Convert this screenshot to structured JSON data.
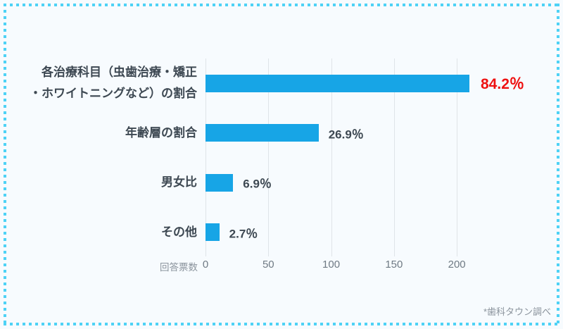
{
  "chart_data": {
    "type": "bar",
    "orientation": "horizontal",
    "title": "",
    "xlabel": "回答票数",
    "x_ticks": [
      0,
      50,
      100,
      150,
      200
    ],
    "xlim": [
      0,
      224
    ],
    "grid": true,
    "legend": false,
    "categories": [
      "各治療科目（虫歯治療・矯正\n・ホワイトニングなど）の割合",
      "年齢層の割合",
      "男女比",
      "その他"
    ],
    "values": [
      210,
      90,
      22,
      11
    ],
    "value_labels": [
      "84.2％",
      "26.9％",
      "6.9％",
      "2.7％"
    ],
    "highlight_index": 0
  },
  "colors": {
    "background": "#F7FBFE",
    "bar": "#17A5E6",
    "gridline": "#DFE4E8",
    "border_dots": "#4ED2F5",
    "category_label": "#3D4852",
    "value_label": "#3D4852",
    "highlight_value_label": "#EE1111",
    "tick_label": "#6F7A84",
    "axis_label": "#8A939C"
  },
  "footer": {
    "source_note": "*歯科タウン調べ"
  }
}
